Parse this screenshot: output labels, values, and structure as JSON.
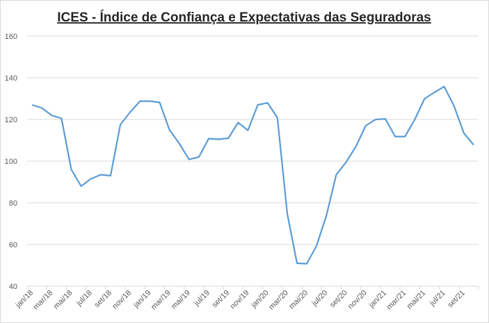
{
  "chart_data": {
    "type": "line",
    "title": "ICES - Índice de Confiança e Expectativas das Seguradoras",
    "xlabel": "",
    "ylabel": "",
    "ylim": [
      40,
      160
    ],
    "yticks": [
      40,
      60,
      80,
      100,
      120,
      140,
      160
    ],
    "grid": true,
    "line_color": "#5B9BD5",
    "x": [
      "jan/18",
      "fev/18",
      "mar/18",
      "abr/18",
      "mai/18",
      "jun/18",
      "jul/18",
      "ago/18",
      "set/18",
      "out/18",
      "nov/18",
      "dez/18",
      "jan/19",
      "fev/19",
      "mar/19",
      "abr/19",
      "mai/19",
      "jun/19",
      "jul/19",
      "ago/19",
      "set/19",
      "out/19",
      "nov/19",
      "dez/19",
      "jan/20",
      "fev/20",
      "mar/20",
      "abr/20",
      "mai/20",
      "jun/20",
      "jul/20",
      "ago/20",
      "set/20",
      "out/20",
      "nov/20",
      "dez/20",
      "jan/21",
      "fev/21",
      "mar/21",
      "abr/21",
      "mai/21",
      "jun/21",
      "jul/21",
      "ago/21",
      "set/21",
      "out/21"
    ],
    "xtick_labels": [
      "jan/18",
      "mar/18",
      "mai/18",
      "jul/18",
      "set/18",
      "nov/18",
      "jan/19",
      "mar/19",
      "mai/19",
      "jul/19",
      "set/19",
      "nov/19",
      "jan/20",
      "mar/20",
      "mai/20",
      "jul/20",
      "set/20",
      "nov/20",
      "jan/21",
      "mar/21",
      "mai/21",
      "jul/21",
      "set/21"
    ],
    "values": [
      127,
      125.5,
      122,
      120.5,
      96,
      88,
      91.5,
      93.5,
      93,
      117.5,
      123.5,
      128.8,
      128.8,
      128.2,
      115,
      108.5,
      100.8,
      102,
      110.8,
      110.5,
      111,
      118.5,
      114.8,
      127,
      128,
      120.8,
      75,
      51,
      50.8,
      59.5,
      74,
      93.5,
      99.5,
      107,
      117,
      120,
      120.3,
      111.8,
      111.8,
      120,
      130,
      133,
      135.8,
      126.5,
      113.5,
      107.8
    ]
  }
}
